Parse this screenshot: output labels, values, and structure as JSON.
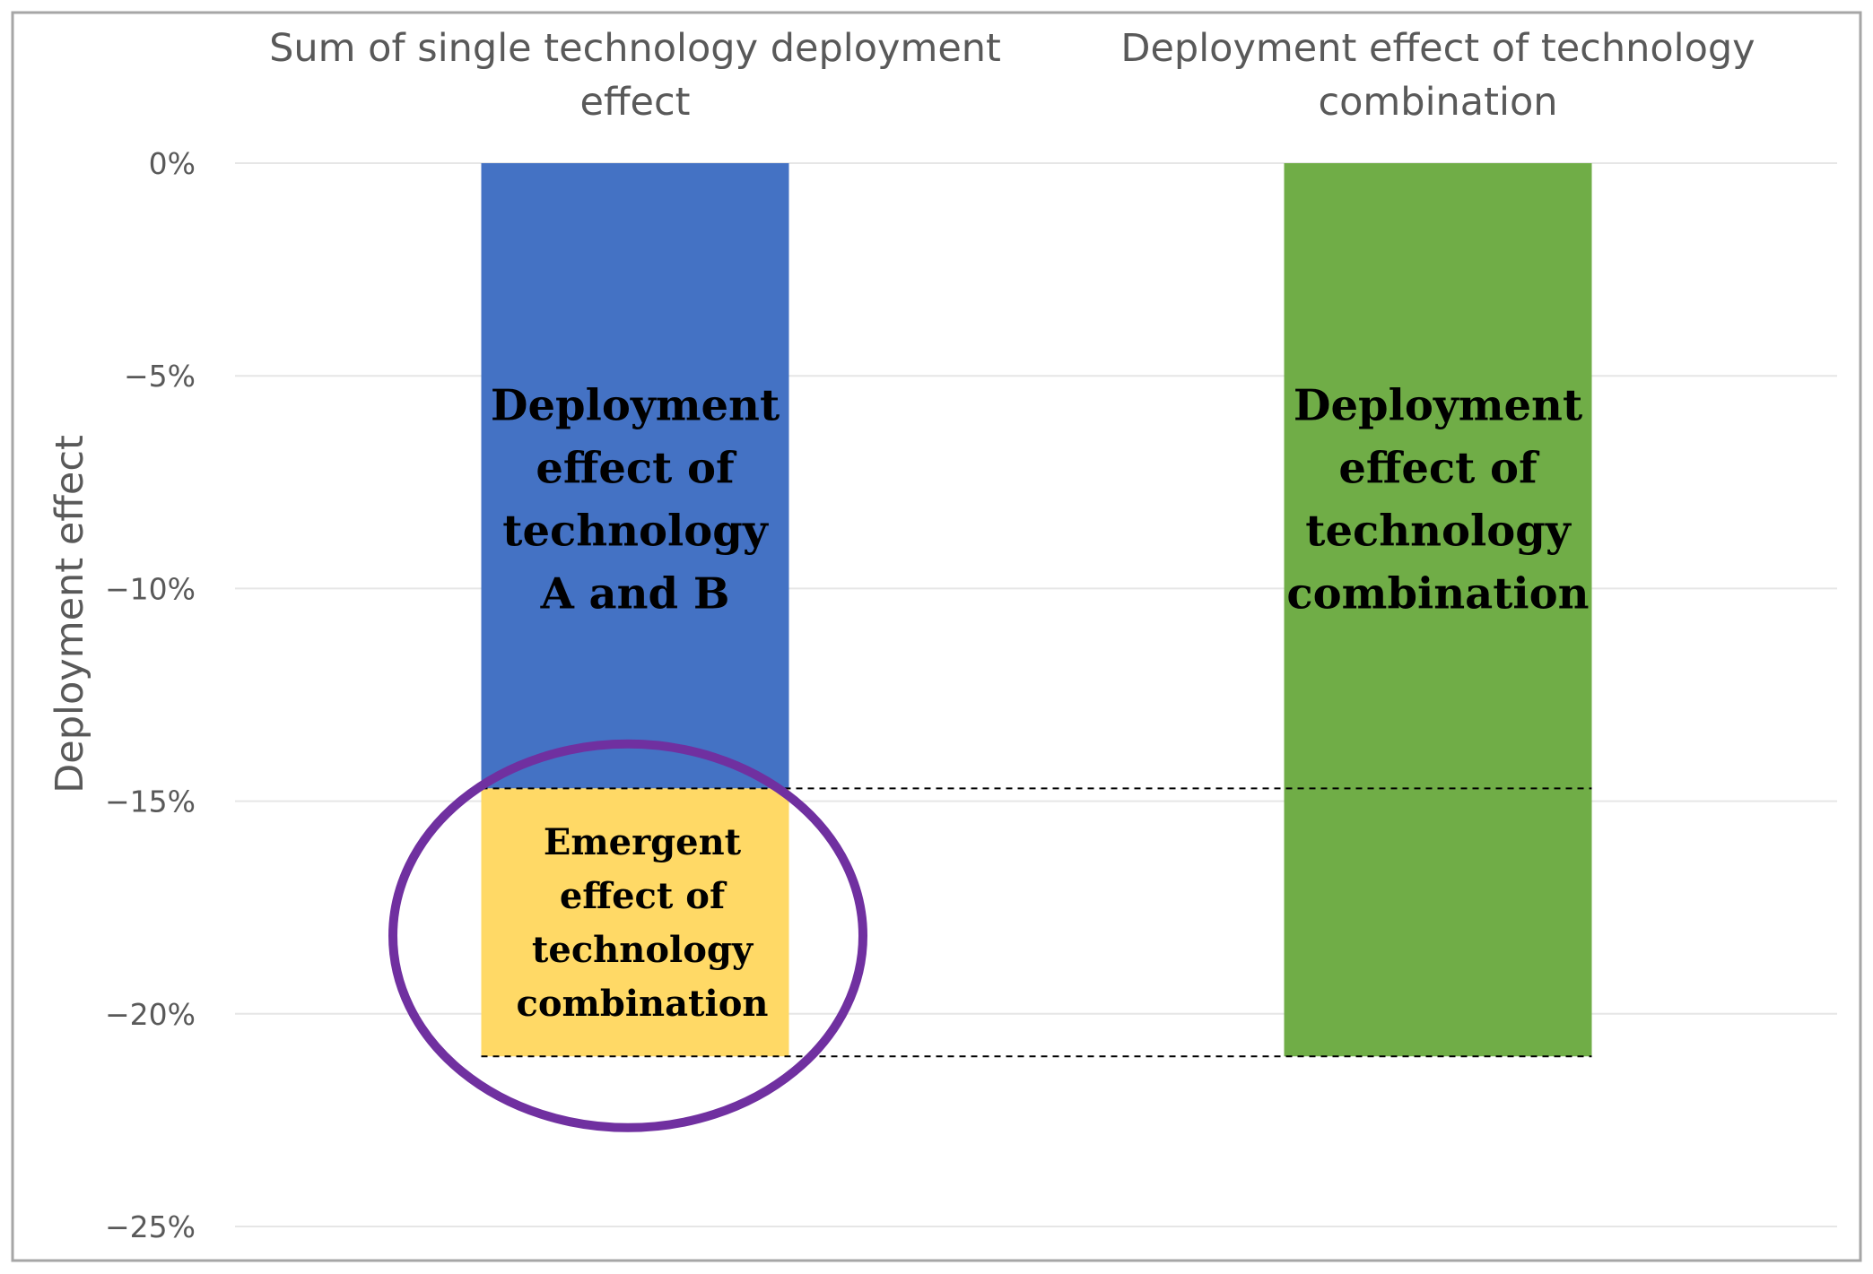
{
  "chart_data": {
    "type": "bar",
    "subtype": "stacked",
    "title": "",
    "ylabel": "Deployment effect",
    "xlabel": "",
    "ylim": [
      -25,
      0
    ],
    "yticks": [
      0,
      -5,
      -10,
      -15,
      -20,
      -25
    ],
    "ytick_labels": [
      "0%",
      "−5%",
      "−10%",
      "−15%",
      "−20%",
      "−25%"
    ],
    "categories": [
      "Sum of single technology deployment effect",
      "Deployment effect of technology combination"
    ],
    "category_label_lines": [
      [
        "Sum of single technology deployment",
        "effect"
      ],
      [
        "Deployment effect of technology",
        "combination"
      ]
    ],
    "grid": true,
    "series": [
      {
        "name": "Deployment effect of technology A and B",
        "label_lines": [
          "Deployment",
          "effect of",
          "technology",
          "A and B"
        ],
        "category_index": 0,
        "start": 0,
        "end": -14.7,
        "color": "#4472C4"
      },
      {
        "name": "Emergent effect of technology combination",
        "label_lines": [
          "Emergent",
          "effect of",
          "technology",
          "combination"
        ],
        "category_index": 0,
        "start": -14.7,
        "end": -21.0,
        "color": "#FFD966"
      },
      {
        "name": "Deployment effect of technology combination",
        "label_lines": [
          "Deployment",
          "effect of",
          "technology",
          "combination"
        ],
        "category_index": 1,
        "start": 0,
        "end": -21.0,
        "color": "#70AD47"
      }
    ],
    "reference_lines": [
      -14.7,
      -21.0
    ],
    "highlight": {
      "target": "Emergent effect of technology combination",
      "shape": "ellipse",
      "color": "#7030A0"
    },
    "gridline_color": "#E6E6E6",
    "text_color": "#595959",
    "border_color": "#A6A6A6"
  }
}
